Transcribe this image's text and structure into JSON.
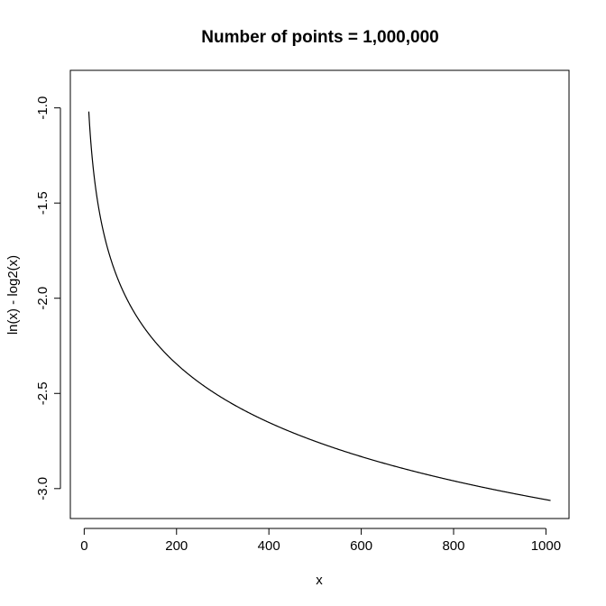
{
  "chart_data": {
    "type": "line",
    "title": "Number of points = 1,000,000",
    "xlabel": "x",
    "ylabel": "ln(x) - log2(x)",
    "xlim": [
      10,
      1010
    ],
    "ylim": [
      -3.07,
      -0.89
    ],
    "x_ticks": [
      {
        "value": 0,
        "label": "0"
      },
      {
        "value": 200,
        "label": "200"
      },
      {
        "value": 400,
        "label": "400"
      },
      {
        "value": 600,
        "label": "600"
      },
      {
        "value": 800,
        "label": "800"
      },
      {
        "value": 1000,
        "label": "1000"
      }
    ],
    "y_ticks": [
      {
        "value": -1.0,
        "label": "-1.0"
      },
      {
        "value": -1.5,
        "label": "-1.5"
      },
      {
        "value": -2.0,
        "label": "-2.0"
      },
      {
        "value": -2.5,
        "label": "-2.5"
      },
      {
        "value": -3.0,
        "label": "-3.0"
      }
    ],
    "grid": false,
    "legend": "none",
    "series": [
      {
        "function": "ln(x) - log2(x)",
        "x_range": [
          10,
          1010
        ],
        "n_points": 1000000,
        "color": "#000000"
      }
    ]
  }
}
